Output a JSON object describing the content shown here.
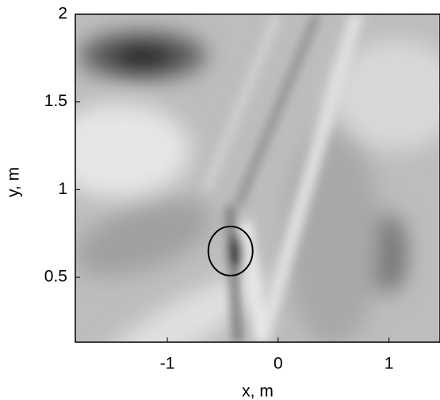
{
  "chart_data": {
    "type": "heatmap",
    "xlabel": "x,  m",
    "ylabel": "y, m",
    "xlim": [
      -1.83,
      1.46
    ],
    "ylim": [
      0.13,
      2
    ],
    "xticks": [
      -1,
      0,
      1
    ],
    "yticks": [
      0.5,
      1,
      1.5,
      2
    ],
    "marker": {
      "x": -0.43,
      "y": 0.65,
      "rx": 0.2,
      "ry": 0.14,
      "color": "#000000"
    }
  }
}
